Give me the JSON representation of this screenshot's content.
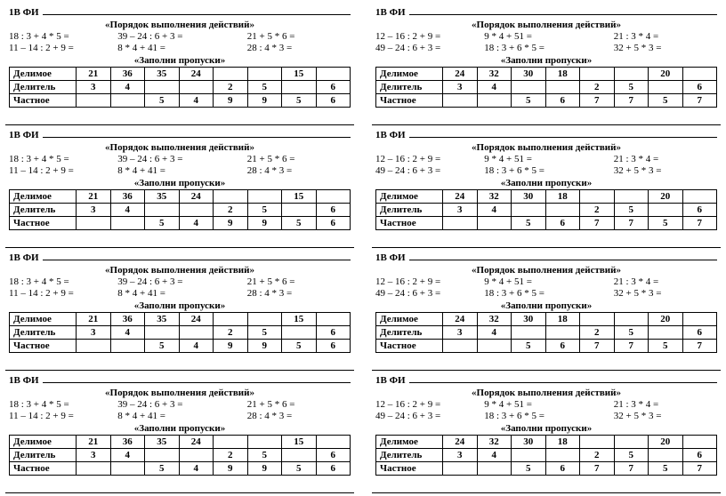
{
  "variantA": {
    "name_label": "1В ФИ",
    "order_title": "«Порядок выполнения действий»",
    "fill_title": "«Заполни пропуски»",
    "exprs": [
      "18 : 3 + 4 * 5 =",
      "39 – 24 : 6 + 3 =",
      "21 + 5 * 6 =",
      "11 – 14 : 2 + 9 =",
      "8 * 4 + 41 =",
      "28 : 4 * 3 ="
    ],
    "row_headers": [
      "Делимое",
      "Делитель",
      "Частное"
    ],
    "cols": 8,
    "rows": [
      [
        "21",
        "36",
        "35",
        "24",
        "",
        "",
        "15",
        ""
      ],
      [
        "3",
        "4",
        "",
        "",
        "2",
        "5",
        "",
        "6"
      ],
      [
        "",
        "",
        "5",
        "4",
        "9",
        "9",
        "5",
        "6"
      ]
    ]
  },
  "variantB": {
    "name_label": "1В ФИ",
    "order_title": "«Порядок выполнения действий»",
    "fill_title": "«Заполни пропуски»",
    "exprs": [
      "12 – 16 : 2 + 9 =",
      "9 * 4 + 51 =",
      "21 : 3 * 4 =",
      "49 – 24 : 6 + 3 =",
      "18 : 3 + 6 * 5 =",
      "32 + 5 * 3 ="
    ],
    "row_headers": [
      "Делимое",
      "Делитель",
      "Частное"
    ],
    "cols": 8,
    "rows": [
      [
        "24",
        "32",
        "30",
        "18",
        "",
        "",
        "20",
        ""
      ],
      [
        "3",
        "4",
        "",
        "",
        "2",
        "5",
        "",
        "6"
      ],
      [
        "",
        "",
        "5",
        "6",
        "7",
        "7",
        "5",
        "7"
      ]
    ]
  },
  "layout": [
    "A",
    "B",
    "A",
    "B",
    "A",
    "B",
    "A",
    "B"
  ]
}
